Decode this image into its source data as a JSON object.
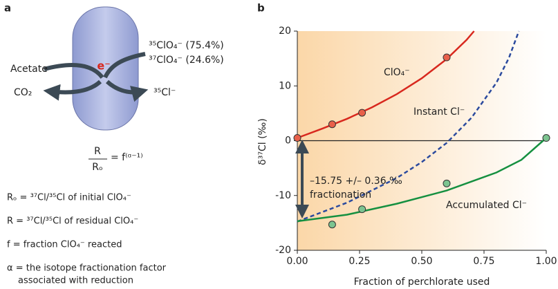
{
  "panel_a": {
    "label": "a",
    "electron": "e⁻",
    "donor": "Acetate",
    "product_left": "CO₂",
    "product_right": "³⁵Cl⁻",
    "substrate_1": "³⁵ClO₄⁻ (75.4%)",
    "substrate_2": "³⁷ClO₄⁻ (24.6%)",
    "equation_numerator": "R",
    "equation_denominator": "Rₒ",
    "equation_right": "= f⁽ᵅ⁻¹⁾",
    "definitions": [
      "Rₒ = ³⁷Cl/³⁵Cl of initial ClO₄⁻",
      "R = ³⁷Cl/³⁵Cl of residual ClO₄⁻",
      "f = fraction ClO₄⁻ reacted",
      "α = the isotope fractionation factor",
      "associated with reduction"
    ]
  },
  "chart_data": {
    "type": "line",
    "panel_label": "b",
    "x_label": "Fraction of perchlorate used",
    "y_label": "δ³⁷Cl (‰)",
    "xlim": [
      0,
      1
    ],
    "ylim": [
      -20,
      20
    ],
    "xticks": [
      {
        "value": 0,
        "label": "0.00"
      },
      {
        "value": 0.25,
        "label": "0.25"
      },
      {
        "value": 0.5,
        "label": "0.50"
      },
      {
        "value": 0.75,
        "label": "0.75"
      },
      {
        "value": 1,
        "label": "1.00"
      }
    ],
    "yticks": [
      -20,
      -10,
      0,
      10,
      20
    ],
    "annotations": [
      "–15.75 +/– 0.36 ‰",
      "fractionation"
    ],
    "series": [
      {
        "name": "ClO₄⁻",
        "color": "#d8281e",
        "dashed": false,
        "x": [
          0,
          0.1,
          0.2,
          0.3,
          0.4,
          0.5,
          0.6,
          0.68,
          0.71
        ],
        "values": [
          0.5,
          2.2,
          4.0,
          6.1,
          8.5,
          11.4,
          14.9,
          18.4,
          20.0
        ],
        "points_x": [
          0,
          0.14,
          0.26,
          0.6
        ],
        "points": [
          0.5,
          3.0,
          5.1,
          15.2
        ],
        "point_color": "#e8604a"
      },
      {
        "name": "Instant Cl⁻",
        "color": "#2b4a9e",
        "dashed": true,
        "x": [
          0,
          0.2,
          0.4,
          0.5,
          0.6,
          0.7,
          0.8,
          0.85,
          0.89
        ],
        "values": [
          -14.75,
          -11.3,
          -6.8,
          -3.9,
          -0.4,
          4.2,
          10.6,
          15.1,
          20.0
        ]
      },
      {
        "name": "Accumulated Cl⁻",
        "color": "#159040",
        "dashed": false,
        "x": [
          0,
          0.2,
          0.4,
          0.6,
          0.8,
          0.9,
          1.0
        ],
        "values": [
          -14.7,
          -13.5,
          -11.5,
          -9.1,
          -5.8,
          -3.5,
          0.5
        ],
        "points_x": [
          0.14,
          0.26,
          0.6,
          1.0
        ],
        "points": [
          -15.3,
          -12.5,
          -7.8,
          0.5
        ],
        "point_color": "#7cc490"
      }
    ]
  }
}
